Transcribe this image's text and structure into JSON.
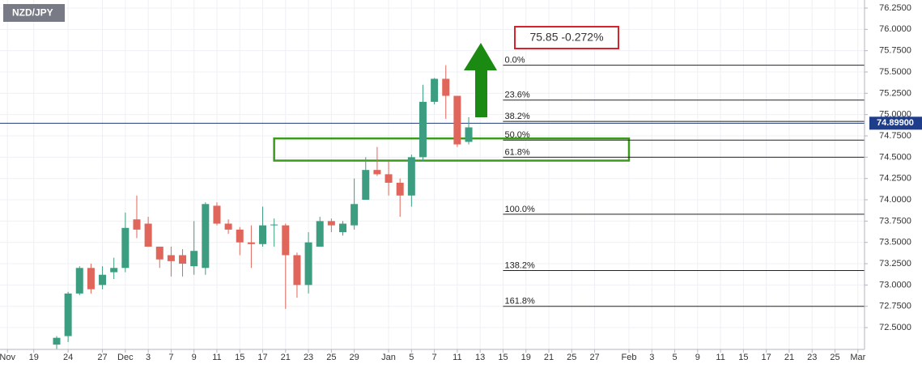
{
  "chart_data": {
    "type": "candlestick",
    "title": "NZD/JPY",
    "up_color": "#3d9d80",
    "down_color": "#e0655a",
    "x": [
      0,
      1,
      2,
      3,
      4,
      5,
      6,
      7,
      8,
      9,
      10,
      11,
      12,
      13,
      14,
      15,
      16,
      17,
      18,
      19,
      20,
      21,
      22,
      23,
      24,
      25,
      26,
      27,
      28,
      29,
      30,
      31,
      32,
      33,
      34,
      35,
      36
    ],
    "open": [
      72.3,
      72.4,
      72.9,
      73.2,
      73.0,
      73.15,
      73.2,
      73.77,
      73.72,
      73.45,
      73.35,
      73.35,
      73.22,
      73.2,
      73.93,
      73.72,
      73.65,
      73.5,
      73.48,
      73.7,
      73.7,
      73.35,
      73.0,
      73.45,
      73.75,
      73.62,
      73.7,
      74.0,
      74.35,
      74.3,
      74.2,
      74.05,
      74.5,
      75.15,
      75.42,
      75.22,
      74.68
    ],
    "high": [
      72.4,
      72.92,
      73.22,
      73.25,
      73.22,
      73.32,
      73.85,
      74.05,
      73.8,
      73.45,
      73.45,
      73.42,
      73.75,
      73.97,
      73.97,
      73.77,
      73.68,
      73.7,
      73.92,
      73.78,
      73.72,
      73.38,
      73.62,
      73.8,
      73.78,
      73.75,
      74.25,
      74.5,
      74.62,
      74.45,
      74.25,
      74.53,
      75.35,
      75.43,
      75.58,
      75.22,
      74.97
    ],
    "low": [
      72.25,
      72.33,
      72.88,
      72.9,
      72.95,
      73.07,
      73.15,
      73.55,
      73.45,
      73.2,
      73.1,
      73.1,
      73.12,
      73.12,
      73.7,
      73.6,
      73.35,
      73.2,
      73.45,
      73.45,
      72.72,
      72.85,
      72.9,
      73.45,
      73.62,
      73.58,
      73.65,
      74.0,
      74.28,
      74.05,
      73.8,
      73.92,
      74.45,
      75.12,
      74.95,
      74.62,
      74.65
    ],
    "close": [
      72.38,
      72.9,
      73.2,
      72.95,
      73.12,
      73.2,
      73.67,
      73.65,
      73.45,
      73.3,
      73.28,
      73.25,
      73.4,
      73.95,
      73.72,
      73.65,
      73.5,
      73.48,
      73.7,
      73.71,
      73.35,
      73.0,
      73.5,
      73.75,
      73.7,
      73.72,
      73.95,
      74.35,
      74.3,
      74.2,
      74.05,
      74.5,
      75.15,
      75.42,
      75.22,
      74.65,
      74.85
    ],
    "xlim": [
      -4.95,
      70.58
    ],
    "xticks": [
      {
        "value": -4.3,
        "label": "Nov"
      },
      {
        "value": -2,
        "label": "19"
      },
      {
        "value": 1,
        "label": "24"
      },
      {
        "value": 4,
        "label": "27"
      },
      {
        "value": 6,
        "label": "Dec"
      },
      {
        "value": 8,
        "label": "3"
      },
      {
        "value": 10,
        "label": "7"
      },
      {
        "value": 12,
        "label": "9"
      },
      {
        "value": 14,
        "label": "11"
      },
      {
        "value": 16,
        "label": "15"
      },
      {
        "value": 18,
        "label": "17"
      },
      {
        "value": 20,
        "label": "21"
      },
      {
        "value": 22,
        "label": "23"
      },
      {
        "value": 24,
        "label": "25"
      },
      {
        "value": 26,
        "label": "29"
      },
      {
        "value": 29,
        "label": "Jan"
      },
      {
        "value": 31,
        "label": "5"
      },
      {
        "value": 33,
        "label": "7"
      },
      {
        "value": 35,
        "label": "11"
      },
      {
        "value": 37,
        "label": "13"
      },
      {
        "value": 39,
        "label": "15"
      },
      {
        "value": 41,
        "label": "19"
      },
      {
        "value": 43,
        "label": "21"
      },
      {
        "value": 45,
        "label": "25"
      },
      {
        "value": 47,
        "label": "27"
      },
      {
        "value": 50,
        "label": "Feb"
      },
      {
        "value": 52,
        "label": "3"
      },
      {
        "value": 54,
        "label": "5"
      },
      {
        "value": 56,
        "label": "9"
      },
      {
        "value": 58,
        "label": "11"
      },
      {
        "value": 60,
        "label": "15"
      },
      {
        "value": 62,
        "label": "17"
      },
      {
        "value": 64,
        "label": "21"
      },
      {
        "value": 66,
        "label": "23"
      },
      {
        "value": 68,
        "label": "25"
      },
      {
        "value": 70,
        "label": "Mar"
      }
    ],
    "ylim": [
      72.244,
      76.345
    ],
    "yticks": [
      {
        "value": 72.5,
        "label": "72.5000"
      },
      {
        "value": 72.75,
        "label": "72.7500"
      },
      {
        "value": 73,
        "label": "73.0000"
      },
      {
        "value": 73.25,
        "label": "73.2500"
      },
      {
        "value": 73.5,
        "label": "73.5000"
      },
      {
        "value": 73.75,
        "label": "73.7500"
      },
      {
        "value": 74,
        "label": "74.0000"
      },
      {
        "value": 74.25,
        "label": "74.2500"
      },
      {
        "value": 74.5,
        "label": "74.5000"
      },
      {
        "value": 74.75,
        "label": "74.7500"
      },
      {
        "value": 75,
        "label": "75.0000"
      },
      {
        "value": 75.25,
        "label": "75.2500"
      },
      {
        "value": 75.5,
        "label": "75.5000"
      },
      {
        "value": 75.75,
        "label": "75.7500"
      },
      {
        "value": 76,
        "label": "76.0000"
      },
      {
        "value": 76.25,
        "label": "76.2500"
      }
    ],
    "grid": true,
    "last_price": {
      "value": 74.899,
      "label": "74.89900"
    },
    "fib_start": 39,
    "fib_levels": [
      {
        "label": "0.0%",
        "price": 75.58
      },
      {
        "label": "23.6%",
        "price": 75.17
      },
      {
        "label": "38.2%",
        "price": 74.92
      },
      {
        "label": "50.0%",
        "price": 74.7
      },
      {
        "label": "61.8%",
        "price": 74.5
      },
      {
        "label": "100.0%",
        "price": 73.83
      },
      {
        "label": "138.2%",
        "price": 73.17
      },
      {
        "label": "161.8%",
        "price": 72.75
      }
    ],
    "zone": {
      "x": [
        19,
        50
      ],
      "y": [
        74.46,
        74.72
      ]
    },
    "annotation": "75.85 -0.272%"
  }
}
